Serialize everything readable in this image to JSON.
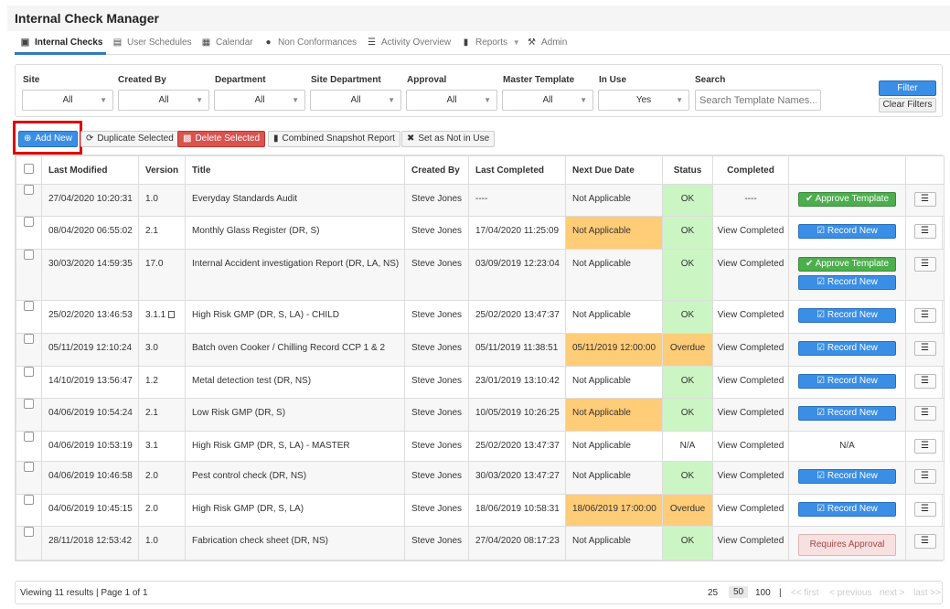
{
  "app": {
    "title": "Internal Check Manager"
  },
  "nav": [
    {
      "label": "Internal Checks",
      "icon": "briefcase-icon"
    },
    {
      "label": "User Schedules",
      "icon": "calendar-user-icon"
    },
    {
      "label": "Calendar",
      "icon": "calendar-icon"
    },
    {
      "label": "Non Conformances",
      "icon": "alert-circle-icon"
    },
    {
      "label": "Activity Overview",
      "icon": "list-icon"
    },
    {
      "label": "Reports",
      "icon": "document-icon"
    },
    {
      "label": "Admin",
      "icon": "wrench-icon"
    }
  ],
  "filters": {
    "site": {
      "label": "Site",
      "value": "All"
    },
    "created_by": {
      "label": "Created By",
      "value": "All"
    },
    "department": {
      "label": "Department",
      "value": "All"
    },
    "site_department": {
      "label": "Site Department",
      "value": "All"
    },
    "approval": {
      "label": "Approval",
      "value": "All"
    },
    "master_template": {
      "label": "Master Template",
      "value": "All"
    },
    "in_use": {
      "label": "In Use",
      "value": "Yes"
    },
    "search": {
      "label": "Search",
      "placeholder": "Search Template Names..."
    },
    "filter_label": "Filter",
    "clear_label": "Clear Filters"
  },
  "actions": {
    "add_new": "Add New",
    "duplicate": "Duplicate Selected",
    "delete": "Delete Selected",
    "snapshot": "Combined Snapshot Report",
    "not_in_use": "Set as Not in Use"
  },
  "table": {
    "headers": {
      "last_modified": "Last Modified",
      "version": "Version",
      "title": "Title",
      "created_by": "Created By",
      "last_completed": "Last Completed",
      "next_due": "Next Due Date",
      "status": "Status",
      "completed": "Completed"
    },
    "rows": [
      {
        "last_modified": "27/04/2020 10:20:31",
        "version": "1.0",
        "title": "Everyday Standards Audit",
        "created_by": "Steve Jones",
        "last_completed": "----",
        "next_due": "Not Applicable",
        "status": "OK",
        "completed": "----",
        "buttons": [
          "Approve Template"
        ]
      },
      {
        "last_modified": "08/04/2020 06:55:02",
        "version": "2.1",
        "title": "Monthly Glass Register (DR, S)",
        "created_by": "Steve Jones",
        "last_completed": "17/04/2020 11:25:09",
        "next_due": "Not Applicable",
        "status": "OK",
        "completed": "View Completed",
        "buttons": [
          "Record New"
        ]
      },
      {
        "last_modified": "30/03/2020 14:59:35",
        "version": "17.0",
        "title": "Internal Accident investigation Report (DR, LA, NS)",
        "created_by": "Steve Jones",
        "last_completed": "03/09/2019 12:23:04",
        "next_due": "Not Applicable",
        "status": "OK",
        "completed": "View Completed",
        "buttons": [
          "Approve Template",
          "Record New"
        ]
      },
      {
        "last_modified": "25/02/2020 13:46:53",
        "version": "3.1.1",
        "title": "High Risk GMP (DR, S, LA) - CHILD",
        "created_by": "Steve Jones",
        "last_completed": "25/02/2020 13:47:37",
        "next_due": "Not Applicable",
        "status": "OK",
        "completed": "View Completed",
        "buttons": [
          "Record New"
        ]
      },
      {
        "last_modified": "05/11/2019 12:10:24",
        "version": "3.0",
        "title": "Batch oven Cooker / Chilling Record CCP 1 & 2",
        "created_by": "Steve Jones",
        "last_completed": "05/11/2019 11:38:51",
        "next_due": "05/11/2019 12:00:00",
        "status": "Overdue",
        "completed": "View Completed",
        "buttons": [
          "Record New"
        ]
      },
      {
        "last_modified": "14/10/2019 13:56:47",
        "version": "1.2",
        "title": "Metal detection test (DR, NS)",
        "created_by": "Steve Jones",
        "last_completed": "23/01/2019 13:10:42",
        "next_due": "Not Applicable",
        "status": "OK",
        "completed": "View Completed",
        "buttons": [
          "Record New"
        ]
      },
      {
        "last_modified": "04/06/2019 10:54:24",
        "version": "2.1",
        "title": "Low Risk GMP (DR, S)",
        "created_by": "Steve Jones",
        "last_completed": "10/05/2019 10:26:25",
        "next_due": "Not Applicable",
        "status": "OK",
        "completed": "View Completed",
        "buttons": [
          "Record New"
        ]
      },
      {
        "last_modified": "04/06/2019 10:53:19",
        "version": "3.1",
        "title": "High Risk GMP (DR, S, LA) - MASTER",
        "created_by": "Steve Jones",
        "last_completed": "25/02/2020 13:47:37",
        "next_due": "Not Applicable",
        "status": "N/A",
        "completed": "View Completed",
        "buttons": [],
        "action_text": "N/A"
      },
      {
        "last_modified": "04/06/2019 10:46:58",
        "version": "2.0",
        "title": "Pest control check (DR, NS)",
        "created_by": "Steve Jones",
        "last_completed": "30/03/2020 13:47:27",
        "next_due": "Not Applicable",
        "status": "OK",
        "completed": "View Completed",
        "buttons": [
          "Record New"
        ]
      },
      {
        "last_modified": "04/06/2019 10:45:15",
        "version": "2.0",
        "title": "High Risk GMP (DR, S, LA)",
        "created_by": "Steve Jones",
        "last_completed": "18/06/2019 10:58:31",
        "next_due": "18/06/2019 17:00:00",
        "status": "Overdue",
        "completed": "View Completed",
        "buttons": [
          "Record New"
        ]
      },
      {
        "last_modified": "28/11/2018 12:53:42",
        "version": "1.0",
        "title": "Fabrication check sheet (DR, NS)",
        "created_by": "Steve Jones",
        "last_completed": "27/04/2020 08:17:23",
        "next_due": "Not Applicable",
        "status": "OK",
        "completed": "View Completed",
        "buttons": [
          "Requires Approval"
        ]
      }
    ]
  },
  "footer": {
    "summary": "Viewing 11 results | Page 1 of 1",
    "page_sizes": [
      "25",
      "50",
      "100"
    ],
    "separator": "|",
    "selected_size": "50",
    "first": "<< first",
    "previous": "< previous",
    "next": "next >",
    "last": "last >>"
  },
  "colors": {
    "primary": "#3a8ee6",
    "success": "#4cae4c",
    "danger": "#d9534f",
    "status_ok": "#ccf5c4",
    "status_overdue": "#ffcc77",
    "highlight": "#e00000"
  }
}
